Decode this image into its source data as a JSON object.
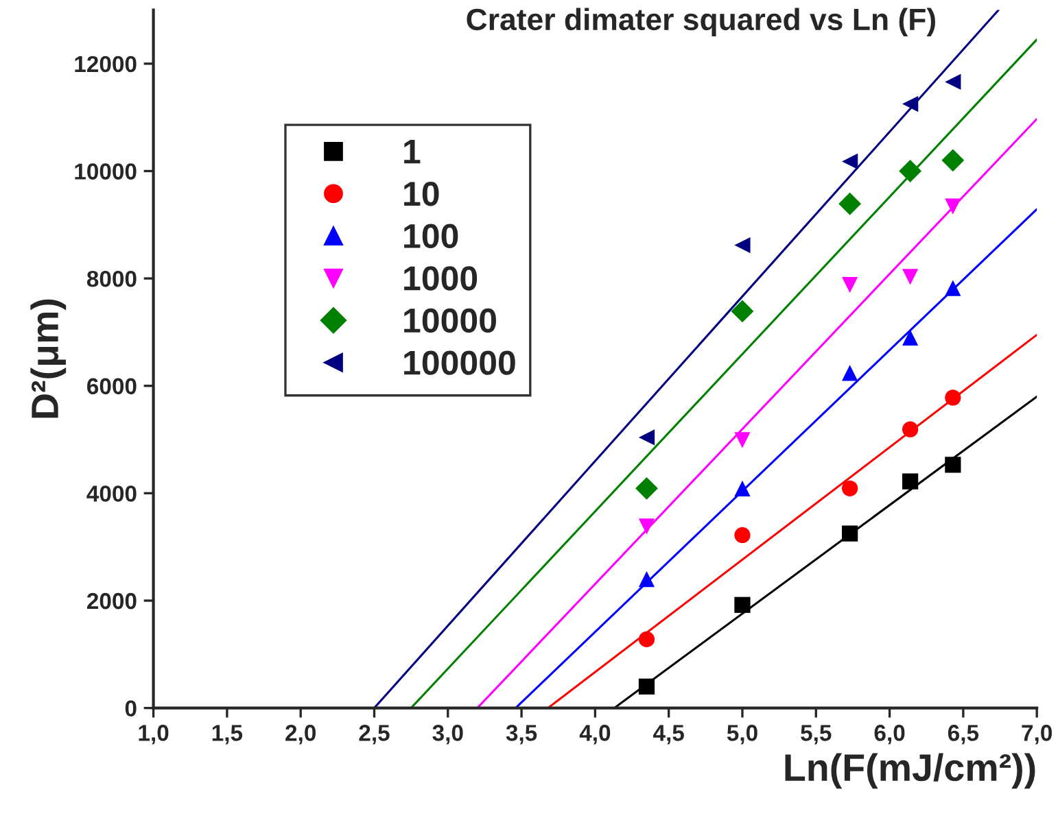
{
  "chart_data": {
    "type": "scatter",
    "title": "Crater dimater squared vs Ln (F)",
    "xlabel": "Ln(F(mJ/cm²))",
    "ylabel": "D²(μm)",
    "x": [
      4.35,
      5.0,
      5.73,
      6.14,
      6.43
    ],
    "series": [
      {
        "name": "1",
        "color": "#000000",
        "marker": "square",
        "values": [
          400,
          1920,
          3250,
          4220,
          4530
        ]
      },
      {
        "name": "10",
        "color": "#ff0000",
        "marker": "circle",
        "values": [
          1280,
          3220,
          4090,
          5190,
          5780
        ]
      },
      {
        "name": "100",
        "color": "#0000ff",
        "marker": "triangle",
        "values": [
          2400,
          4090,
          6240,
          6900,
          7820
        ]
      },
      {
        "name": "1000",
        "color": "#ff00ff",
        "marker": "triangle_down",
        "values": [
          3380,
          4990,
          7880,
          8030,
          9340
        ]
      },
      {
        "name": "10000",
        "color": "#008000",
        "marker": "diamond",
        "values": [
          4090,
          7390,
          9390,
          10000,
          10200
        ]
      },
      {
        "name": "100000",
        "color": "#000080",
        "marker": "triangle_left",
        "values": [
          5040,
          8620,
          10180,
          11250,
          11660
        ]
      },
      {
        "type": "line",
        "color": "#000000",
        "x": [
          4.13,
          7.0
        ],
        "values": [
          0,
          5800
        ]
      },
      {
        "type": "line",
        "color": "#ff0000",
        "x": [
          3.68,
          7.0
        ],
        "values": [
          0,
          6950
        ]
      },
      {
        "type": "line",
        "color": "#0000ff",
        "x": [
          3.46,
          7.0
        ],
        "values": [
          0,
          9290
        ]
      },
      {
        "type": "line",
        "color": "#ff00ff",
        "x": [
          3.2,
          7.0
        ],
        "values": [
          0,
          10970
        ]
      },
      {
        "type": "line",
        "color": "#008000",
        "x": [
          2.75,
          7.0
        ],
        "values": [
          0,
          12450
        ]
      },
      {
        "type": "line",
        "color": "#000080",
        "x": [
          2.5,
          6.74
        ],
        "values": [
          0,
          13000
        ]
      }
    ],
    "xlim": [
      1.0,
      7.0
    ],
    "xticks": [
      {
        "value": 1.0,
        "label": "1,0"
      },
      {
        "value": 1.5,
        "label": "1,5"
      },
      {
        "value": 2.0,
        "label": "2,0"
      },
      {
        "value": 2.5,
        "label": "2,5"
      },
      {
        "value": 3.0,
        "label": "3,0"
      },
      {
        "value": 3.5,
        "label": "3,5"
      },
      {
        "value": 4.0,
        "label": "4,0"
      },
      {
        "value": 4.5,
        "label": "4,5"
      },
      {
        "value": 5.0,
        "label": "5,0"
      },
      {
        "value": 5.5,
        "label": "5,5"
      },
      {
        "value": 6.0,
        "label": "6,0"
      },
      {
        "value": 6.5,
        "label": "6,5"
      },
      {
        "value": 7.0,
        "label": "7,0"
      }
    ],
    "ylim": [
      0,
      13000
    ],
    "yticks": [
      0,
      2000,
      4000,
      6000,
      8000,
      10000,
      12000
    ],
    "grid": false,
    "legend": "top left"
  }
}
